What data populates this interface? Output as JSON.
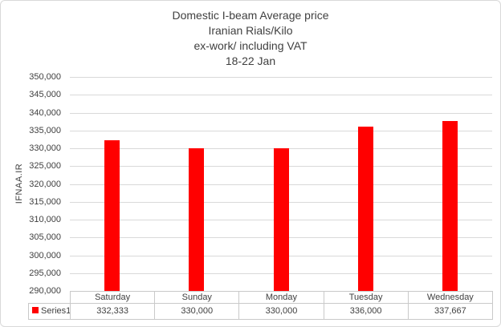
{
  "chart_data": {
    "type": "bar",
    "title": "Domestic I-beam Average price Iranian Rials/Kilo ex-work/ including VAT 18-22 Jan",
    "title_lines": [
      "Domestic I-beam Average price",
      "Iranian Rials/Kilo",
      "ex-work/ including VAT",
      "18-22 Jan"
    ],
    "categories": [
      "Saturday",
      "Sunday",
      "Monday",
      "Tuesday",
      "Wednesday"
    ],
    "series": [
      {
        "name": "Series1",
        "values": [
          332333,
          330000,
          330000,
          336000,
          337667
        ],
        "values_display": [
          "332,333",
          "330,000",
          "330,000",
          "336,000",
          "337,667"
        ],
        "color": "#ff0000"
      }
    ],
    "xlabel": "",
    "ylabel": "IFNAA.IR",
    "ylim": [
      290000,
      350000
    ],
    "ytick_step": 5000,
    "ytick_labels": [
      "350,000",
      "345,000",
      "340,000",
      "335,000",
      "330,000",
      "325,000",
      "320,000",
      "315,000",
      "310,000",
      "305,000",
      "300,000",
      "295,000",
      "290,000"
    ],
    "grid": true,
    "legend_position": "bottom-data-table"
  },
  "colors": {
    "bar": "#ff0000",
    "gridline": "#d9d9d9",
    "table_border": "#c9c9c9",
    "text": "#404040",
    "chart_border": "#d9d9d9",
    "background": "#ffffff"
  }
}
